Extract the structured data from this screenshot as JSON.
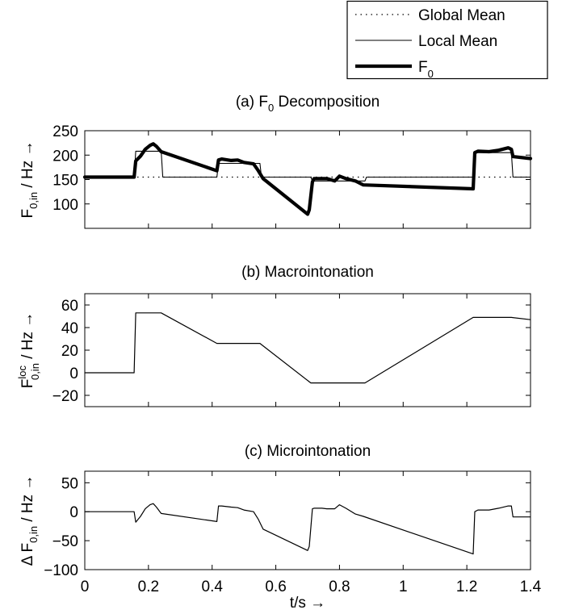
{
  "legend": {
    "items": [
      {
        "label": "Global Mean",
        "style": "dotted"
      },
      {
        "label": "Local Mean",
        "style": "thin"
      },
      {
        "label": "F",
        "sub": "0",
        "style": "thick"
      }
    ]
  },
  "xaxis": {
    "label": "t/s →",
    "ticks": [
      "0",
      "0.2",
      "0.4",
      "0.6",
      "0.8",
      "1",
      "1.2",
      "1.4"
    ]
  },
  "chart_data": [
    {
      "type": "line",
      "title": "(a) F",
      "title_sub": "0",
      "title_rest": " Decomposition",
      "ylabel": {
        "main": "F",
        "sub": "0,in",
        "rest": " / Hz →"
      },
      "xlim": [
        0,
        1.4
      ],
      "ylim": [
        50,
        250
      ],
      "yticks": [
        "250",
        "200",
        "150",
        "100"
      ],
      "yvals": [
        250,
        200,
        150,
        100
      ],
      "series": [
        {
          "name": "Global Mean",
          "style": "dotted",
          "x": [
            0,
            1.4
          ],
          "y": [
            155,
            155
          ]
        },
        {
          "name": "Local Mean",
          "style": "thin",
          "x": [
            0,
            0.155,
            0.16,
            0.24,
            0.245,
            0.415,
            0.42,
            0.55,
            0.555,
            0.71,
            0.715,
            0.88,
            0.885,
            1.22,
            1.225,
            1.34,
            1.345,
            1.4
          ],
          "y": [
            155,
            155,
            208,
            208,
            155,
            155,
            183,
            183,
            155,
            155,
            147,
            147,
            155,
            155,
            205,
            205,
            155,
            155
          ]
        },
        {
          "name": "F0",
          "style": "thick",
          "x": [
            0,
            0.155,
            0.16,
            0.175,
            0.19,
            0.205,
            0.215,
            0.225,
            0.24,
            0.415,
            0.42,
            0.43,
            0.46,
            0.48,
            0.5,
            0.53,
            0.545,
            0.56,
            0.7,
            0.705,
            0.715,
            0.72,
            0.745,
            0.76,
            0.785,
            0.8,
            0.82,
            0.85,
            0.875,
            1.22,
            1.225,
            1.235,
            1.27,
            1.3,
            1.33,
            1.34,
            1.345,
            1.4
          ],
          "y": [
            155,
            155,
            188,
            198,
            212,
            220,
            223,
            218,
            207,
            168,
            190,
            192,
            189,
            190,
            185,
            182,
            168,
            152,
            79,
            88,
            145,
            152,
            152,
            152,
            147,
            157,
            152,
            147,
            139,
            131,
            205,
            208,
            207,
            210,
            215,
            212,
            197,
            193
          ]
        }
      ]
    },
    {
      "type": "line",
      "title": "(b) Macrointonation",
      "ylabel": {
        "main": "F",
        "sub": "0,in",
        "sup": "loc",
        "rest": " / Hz →"
      },
      "xlim": [
        0,
        1.4
      ],
      "ylim": [
        -30,
        70
      ],
      "yticks": [
        "60",
        "40",
        "20",
        "0",
        "−20"
      ],
      "yvals": [
        60,
        40,
        20,
        0,
        -20
      ],
      "series": [
        {
          "name": "F0 loc",
          "x": [
            0,
            0.155,
            0.16,
            0.24,
            0.415,
            0.55,
            0.71,
            0.88,
            1.22,
            1.34,
            1.4
          ],
          "y": [
            0,
            0,
            53,
            53,
            26,
            26,
            -9,
            -9,
            49,
            49,
            47
          ]
        }
      ]
    },
    {
      "type": "line",
      "title": "(c) Microintonation",
      "ylabel": {
        "main": "Δ F",
        "sub": "0,in",
        "rest": " / Hz →"
      },
      "xlim": [
        0,
        1.4
      ],
      "ylim": [
        -100,
        70
      ],
      "yticks": [
        "50",
        "0",
        "−50",
        "−100"
      ],
      "yvals": [
        50,
        0,
        -50,
        -100
      ],
      "series": [
        {
          "name": "Delta F0",
          "x": [
            0,
            0.155,
            0.16,
            0.175,
            0.19,
            0.205,
            0.215,
            0.225,
            0.24,
            0.415,
            0.42,
            0.43,
            0.46,
            0.48,
            0.5,
            0.53,
            0.545,
            0.56,
            0.7,
            0.705,
            0.715,
            0.72,
            0.745,
            0.76,
            0.785,
            0.8,
            0.82,
            0.85,
            0.875,
            1.22,
            1.225,
            1.235,
            1.27,
            1.3,
            1.33,
            1.34,
            1.345,
            1.4
          ],
          "y": [
            0,
            0,
            -18,
            -8,
            5,
            12,
            14,
            8,
            -3,
            -17,
            10,
            10,
            8,
            7,
            3,
            0,
            -13,
            -30,
            -67,
            -60,
            5,
            6,
            6,
            5,
            5,
            12,
            6,
            -4,
            -8,
            -73,
            0,
            3,
            3,
            6,
            10,
            10,
            -9,
            -9
          ]
        }
      ]
    }
  ]
}
